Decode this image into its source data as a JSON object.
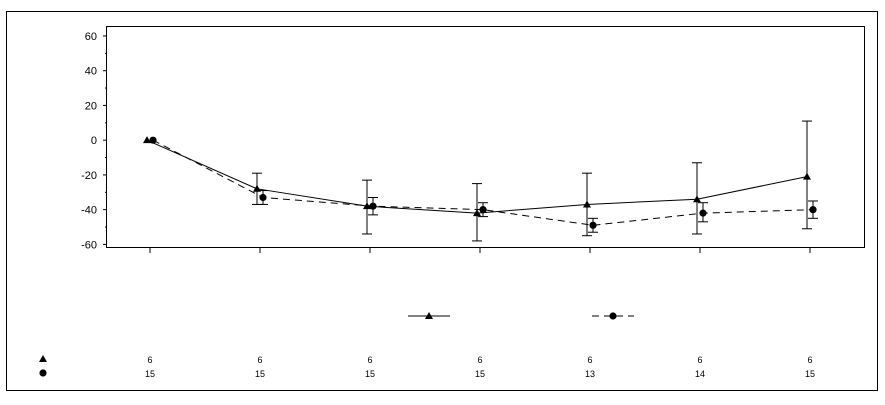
{
  "chart_data": {
    "type": "line",
    "title": "",
    "xlabel": "",
    "ylabel": "",
    "x": [
      0,
      1,
      2,
      3,
      4,
      5,
      6
    ],
    "ylim": [
      -62,
      62
    ],
    "yticks": [
      60,
      40,
      20,
      0,
      -20,
      -40,
      -60
    ],
    "series": [
      {
        "marker": "triangle",
        "line_style": "solid",
        "values": [
          0,
          -28,
          -38,
          -42,
          -37,
          -34,
          -21
        ],
        "error_low": [
          0,
          -37,
          -54,
          -58,
          -55,
          -54,
          -51
        ],
        "error_high": [
          0,
          -19,
          -23,
          -25,
          -19,
          -13,
          11
        ],
        "counts": [
          "6",
          "6",
          "6",
          "6",
          "6",
          "6",
          "6"
        ]
      },
      {
        "marker": "circle",
        "line_style": "dashed",
        "values": [
          0,
          -33,
          -38,
          -40,
          -49,
          -42,
          -40
        ],
        "error_low": [
          0,
          -37,
          -43,
          -44,
          -53,
          -47,
          -45
        ],
        "error_high": [
          0,
          -29,
          -33,
          -36,
          -45,
          -36,
          -35
        ],
        "counts": [
          "15",
          "15",
          "15",
          "15",
          "13",
          "14",
          "15"
        ]
      }
    ],
    "legend": {
      "position": "bottom-center"
    },
    "grid": false
  }
}
